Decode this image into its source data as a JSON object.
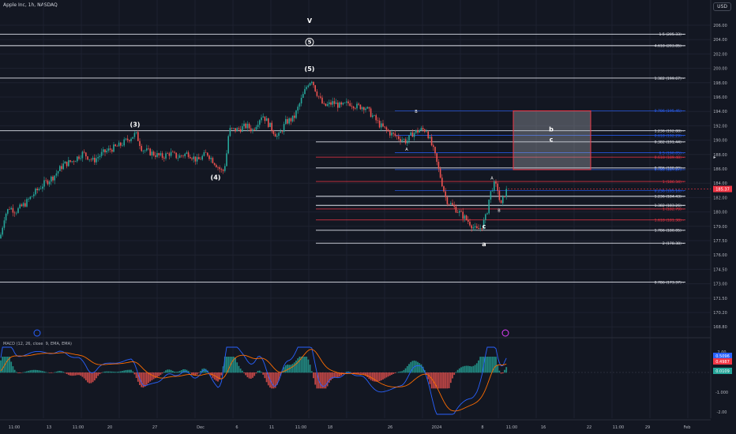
{
  "header": {
    "title": "Apple Inc, 1h, NASDAQ",
    "currency": "USD"
  },
  "macd_label": "MACD (12, 26, close, 9, EMA, EMA)",
  "colors": {
    "up": "#26a69a",
    "down": "#ef5350",
    "bg": "#131722",
    "fib_white": "#e0e3eb",
    "fib_red": "#f23645",
    "fib_blue": "#2962ff",
    "box": "#f23645"
  },
  "chart_data": {
    "type": "line",
    "price_axis": {
      "min": 166.5,
      "max": 207.5,
      "ticks": [
        "206.00",
        "204.00",
        "202.00",
        "200.00",
        "198.00",
        "196.00",
        "194.00",
        "192.00",
        "190.00",
        "188.00",
        "186.00",
        "184.00",
        "182.00",
        "180.00",
        "179.00",
        "177.50",
        "176.00",
        "174.50",
        "173.00",
        "171.50",
        "170.20",
        "168.80"
      ]
    },
    "x_ticks": [
      "11:00",
      "13",
      "11:00",
      "20",
      "27",
      "Dec",
      "6",
      "11",
      "11:00",
      "18",
      "26",
      "2024",
      "8",
      "11:00",
      "16",
      "22",
      "11:00",
      "29",
      "Feb"
    ],
    "price_path": [
      [
        0,
        179
      ],
      [
        6,
        182
      ],
      [
        12,
        183
      ],
      [
        20,
        182.5
      ],
      [
        32,
        183.5
      ],
      [
        45,
        185
      ],
      [
        55,
        186
      ],
      [
        68,
        187
      ],
      [
        80,
        188.5
      ],
      [
        92,
        189
      ],
      [
        105,
        190
      ],
      [
        118,
        189
      ],
      [
        130,
        190
      ],
      [
        140,
        190.5
      ],
      [
        152,
        191
      ],
      [
        165,
        192
      ],
      [
        172,
        192.5
      ],
      [
        180,
        190.5
      ],
      [
        192,
        190
      ],
      [
        205,
        189.5
      ],
      [
        215,
        190
      ],
      [
        225,
        189.5
      ],
      [
        238,
        190
      ],
      [
        250,
        189
      ],
      [
        262,
        190
      ],
      [
        270,
        189
      ],
      [
        278,
        188
      ],
      [
        282,
        187.5
      ],
      [
        286,
        189
      ],
      [
        290,
        193
      ],
      [
        300,
        193
      ],
      [
        312,
        193.5
      ],
      [
        320,
        193
      ],
      [
        332,
        195
      ],
      [
        345,
        193
      ],
      [
        352,
        192
      ],
      [
        362,
        194
      ],
      [
        372,
        194.5
      ],
      [
        382,
        197
      ],
      [
        390,
        199
      ],
      [
        395,
        199.5
      ],
      [
        400,
        198
      ],
      [
        410,
        196
      ],
      [
        422,
        196.5
      ],
      [
        432,
        196
      ],
      [
        442,
        196.5
      ],
      [
        452,
        196
      ],
      [
        462,
        196
      ],
      [
        470,
        195
      ],
      [
        482,
        193.5
      ],
      [
        495,
        192.5
      ],
      [
        505,
        192
      ],
      [
        515,
        191.5
      ],
      [
        522,
        192.5
      ],
      [
        532,
        193
      ],
      [
        540,
        193
      ],
      [
        545,
        191.5
      ],
      [
        550,
        190
      ],
      [
        555,
        188
      ],
      [
        560,
        186
      ],
      [
        565,
        184
      ],
      [
        575,
        183
      ],
      [
        585,
        182
      ],
      [
        595,
        181
      ],
      [
        603,
        180
      ],
      [
        610,
        180.5
      ],
      [
        616,
        182
      ],
      [
        620,
        184.5
      ],
      [
        625,
        186
      ],
      [
        630,
        185.5
      ],
      [
        634,
        183
      ],
      [
        638,
        184.5
      ],
      [
        643,
        185.5
      ]
    ],
    "current_price": {
      "label": "185.37",
      "value": 185.37
    },
    "fib_levels": [
      {
        "label": "1.5 (205.33)",
        "value": 205.33,
        "color": "white",
        "x0": 0
      },
      {
        "label": "4.618 (203.85)",
        "value": 203.85,
        "color": "white",
        "x0": 0
      },
      {
        "label": "1.382 (199.67)",
        "value": 199.67,
        "color": "white",
        "x0": 0
      },
      {
        "label": "0.786 (195.45)",
        "value": 195.45,
        "color": "blue",
        "x0": 500
      },
      {
        "label": "1.236 (192.88)",
        "value": 192.88,
        "color": "white",
        "x0": 0
      },
      {
        "label": "0.618 (192.29)",
        "value": 192.29,
        "color": "blue",
        "x0": 500
      },
      {
        "label": "0.382 (191.44)",
        "value": 191.44,
        "color": "white",
        "x0": 400
      },
      {
        "label": "0.5 (190.05)",
        "value": 190.05,
        "color": "blue",
        "x0": 500
      },
      {
        "label": "0.618 (189.48)",
        "value": 189.48,
        "color": "red",
        "x0": 400
      },
      {
        "label": "0.786 (188.09)",
        "value": 188.09,
        "color": "white",
        "x0": 400
      },
      {
        "label": "0.786 (187.87)",
        "value": 187.87,
        "color": "blue",
        "x0": 500
      },
      {
        "label": "1 (186.34)",
        "value": 186.34,
        "color": "red",
        "x0": 400
      },
      {
        "label": "0.236 (185.16)",
        "value": 185.16,
        "color": "blue",
        "x0": 500
      },
      {
        "label": "1.236 (184.43)",
        "value": 184.43,
        "color": "white",
        "x0": 400
      },
      {
        "label": "1.382 (183.26)",
        "value": 183.26,
        "color": "white",
        "x0": 400
      },
      {
        "label": "1 (182.79)",
        "value": 182.79,
        "color": "red",
        "x0": 400
      },
      {
        "label": "1.618 (181.38)",
        "value": 181.38,
        "color": "red",
        "x0": 400
      },
      {
        "label": "1.786 (180.05)",
        "value": 180.05,
        "color": "white",
        "x0": 400
      },
      {
        "label": "2 (178.38)",
        "value": 178.38,
        "color": "white",
        "x0": 400
      },
      {
        "label": "0.786 (173.37)",
        "value": 173.37,
        "color": "white",
        "x0": 0
      }
    ],
    "target_box": {
      "x0": 650,
      "x1": 748,
      "top": 195.45,
      "bottom": 187.87
    },
    "wave_labels": [
      {
        "text": "V",
        "x": 392,
        "y": 206.8
      },
      {
        "text": "5",
        "x": 392,
        "y": 204.1,
        "circled": true
      },
      {
        "text": "(5)",
        "x": 392,
        "y": 200.6
      },
      {
        "text": "(3)",
        "x": 171,
        "y": 193.4
      },
      {
        "text": "(4)",
        "x": 273,
        "y": 186.6
      },
      {
        "text": "B",
        "x": 527,
        "y": 195.2,
        "small": true
      },
      {
        "text": "A",
        "x": 515,
        "y": 190.3,
        "small": true
      },
      {
        "text": "b",
        "x": 698,
        "y": 192.8
      },
      {
        "text": "c",
        "x": 698,
        "y": 191.5
      },
      {
        "text": "A",
        "x": 623,
        "y": 186.6,
        "small": true
      },
      {
        "text": "B",
        "x": 632,
        "y": 182.4,
        "small": true
      },
      {
        "text": "c",
        "x": 613,
        "y": 180.3
      },
      {
        "text": "a",
        "x": 613,
        "y": 178.0
      }
    ],
    "macd": {
      "axis_ticks": [
        "2.00",
        "0.5096",
        "0.4987",
        "0.0109",
        "-1.000",
        "-2.00"
      ],
      "badges": [
        {
          "label": "0.5096",
          "color": "#2962ff"
        },
        {
          "label": "0.4987",
          "color": "#f23645"
        },
        {
          "label": "0.0109",
          "color": "#26a69a"
        }
      ]
    }
  }
}
